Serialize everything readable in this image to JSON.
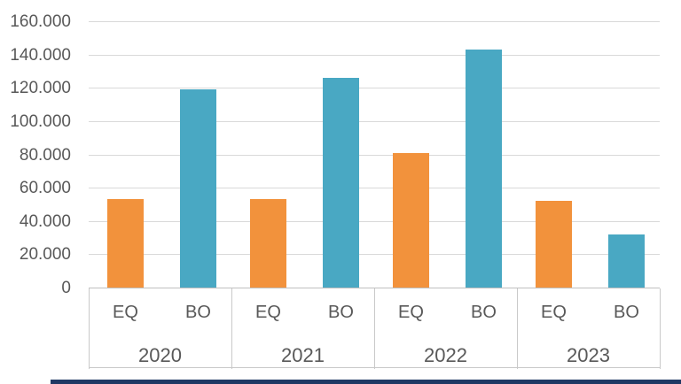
{
  "chart_data": {
    "type": "bar",
    "title": "",
    "categories": [
      "2020",
      "2021",
      "2022",
      "2023"
    ],
    "sub_categories": [
      "EQ",
      "BO"
    ],
    "series": [
      {
        "name": "EQ",
        "color": "#f2923c",
        "values": [
          53000,
          53000,
          81000,
          52000
        ]
      },
      {
        "name": "BO",
        "color": "#49a8c3",
        "values": [
          119000,
          126000,
          143000,
          32000
        ]
      }
    ],
    "y_axis": {
      "min": 0,
      "max": 160000,
      "step": 20000,
      "tick_labels": [
        "160.000",
        "140.000",
        "120.000",
        "100.000",
        "80.000",
        "60.000",
        "40.000",
        "20.000",
        "0"
      ]
    },
    "grid": true,
    "legend": "none",
    "number_format": "thousands-dot-separator"
  },
  "colors": {
    "gridline": "#d9d9d9",
    "axis_line": "#bfbfbf",
    "label_text": "#595959",
    "background": "#ffffff",
    "bottom_accent": "#1f3864"
  }
}
